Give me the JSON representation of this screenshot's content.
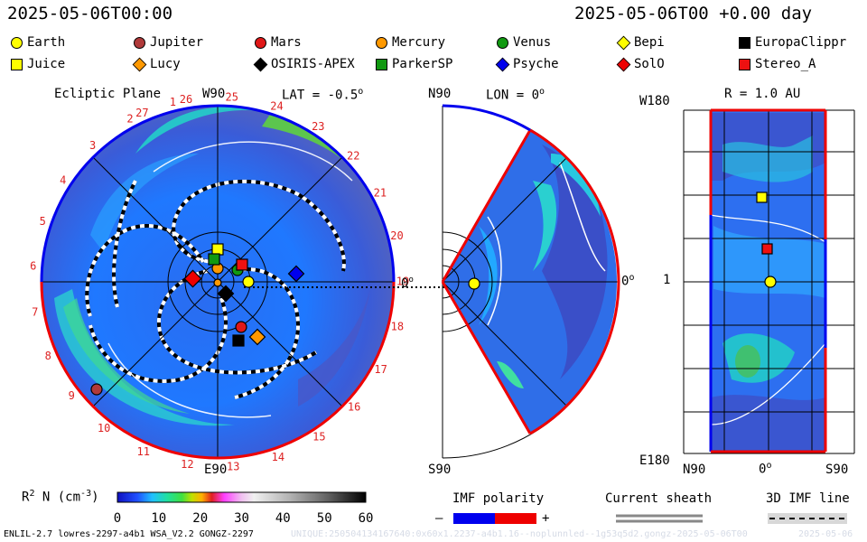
{
  "header": {
    "timestamp": "2025-05-06T00:00",
    "forecast": "2025-05-06T00 +0.00 day"
  },
  "legend": [
    {
      "label": "Earth",
      "shape": "circle",
      "color": "#ffff00"
    },
    {
      "label": "Jupiter",
      "shape": "circle",
      "color": "#b03a3a"
    },
    {
      "label": "Mars",
      "shape": "circle",
      "color": "#e01818"
    },
    {
      "label": "Mercury",
      "shape": "circle",
      "color": "#ff9900"
    },
    {
      "label": "Venus",
      "shape": "circle",
      "color": "#119911"
    },
    {
      "label": "Bepi",
      "shape": "diamond",
      "color": "#ffff00"
    },
    {
      "label": "EuropaClippr",
      "shape": "square",
      "color": "#000000"
    },
    {
      "label": "Juice",
      "shape": "square",
      "color": "#ffff00"
    },
    {
      "label": "Lucy",
      "shape": "diamond",
      "color": "#ff9900"
    },
    {
      "label": "OSIRIS-APEX",
      "shape": "diamond",
      "color": "#000000"
    },
    {
      "label": "ParkerSP",
      "shape": "square",
      "color": "#119911"
    },
    {
      "label": "Psyche",
      "shape": "diamond",
      "color": "#0000ee"
    },
    {
      "label": "SolO",
      "shape": "diamond",
      "color": "#ee0000"
    },
    {
      "label": "Stereo_A",
      "shape": "square",
      "color": "#ee1111"
    }
  ],
  "panels": {
    "ecliptic": {
      "title": "Ecliptic Plane",
      "lat_label": "LAT = -0.5",
      "lat_degree": "o",
      "top_label": "W90",
      "bottom_label": "E90",
      "zero_label": "0",
      "zero_degree": "o",
      "sectors": [
        "1",
        "2",
        "3",
        "4",
        "5",
        "6",
        "7",
        "8",
        "9",
        "10",
        "11",
        "12",
        "13",
        "14",
        "15",
        "16",
        "17",
        "18",
        "19",
        "20",
        "21",
        "22",
        "23",
        "24",
        "25",
        "26",
        "27"
      ]
    },
    "meridional": {
      "top_label": "N90",
      "lon_label": "LON = 0",
      "lon_degree": "o",
      "bottom_label": "S90",
      "zero_label": "0",
      "zero_degree": "o"
    },
    "radial": {
      "r_label": "R = 1.0 AU",
      "top_left": "W180",
      "mid_left": "1",
      "bottom_left": "E180",
      "x_left": "N90",
      "x_mid": "0",
      "x_mid_degree": "o",
      "x_right": "S90"
    }
  },
  "colorbar": {
    "label": "R",
    "label_sup": "2",
    "label_rest": " N (cm",
    "label_sup2": "-3",
    "label_end": ")",
    "ticks": [
      "0",
      "10",
      "20",
      "30",
      "40",
      "50",
      "60"
    ]
  },
  "imf": {
    "title": "IMF polarity",
    "minus": "–",
    "plus": "+",
    "neg_color": "#0000ee",
    "pos_color": "#ee0000"
  },
  "sheath": {
    "title": "Current sheath"
  },
  "imf3d": {
    "title": "3D IMF line"
  },
  "footer": {
    "model": "ENLIL-2.7 lowres-2297-a4b1 WSA_V2.2 GONGZ-2297",
    "run_id": "UNIQUE:250504134167640:0x60x1.2237-a4b1.16--noplunnled--1g53q5d2.gongz-2025-05-06T00",
    "date": "2025-05-06"
  }
}
